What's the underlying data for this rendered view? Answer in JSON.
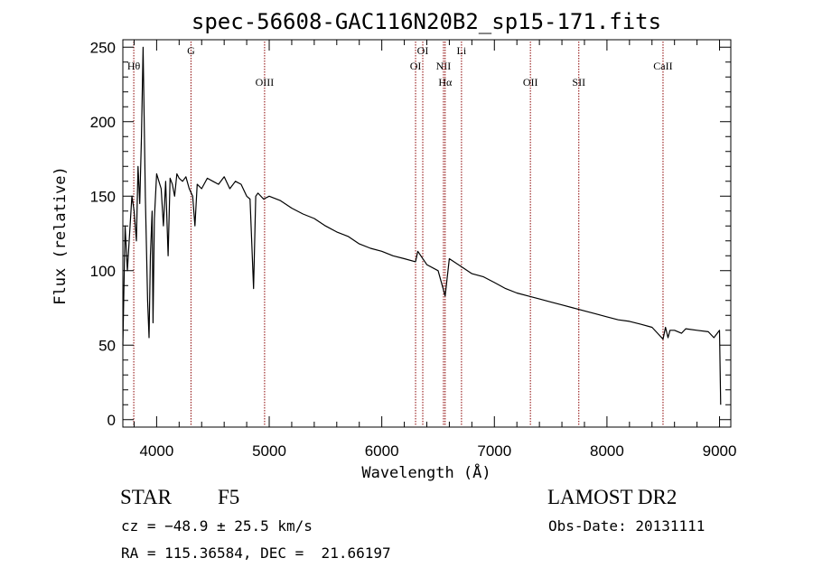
{
  "chart_data": {
    "type": "line",
    "title": "spec-56608-GAC116N20B2_sp15-171.fits",
    "xlabel": "Wavelength (Å)",
    "ylabel": "Flux (relative)",
    "xlim": [
      3700,
      9100
    ],
    "ylim": [
      -5,
      255
    ],
    "x_ticks": [
      "4000",
      "5000",
      "6000",
      "7000",
      "8000",
      "9000"
    ],
    "y_ticks": [
      "0",
      "50",
      "100",
      "150",
      "200",
      "250"
    ],
    "grid": false,
    "line_color": "#000000",
    "marker_color": "#8b0000",
    "series": [
      {
        "x": [
          3700,
          3720,
          3740,
          3760,
          3780,
          3800,
          3820,
          3835,
          3850,
          3865,
          3880,
          3900,
          3920,
          3933,
          3945,
          3960,
          3968,
          3980,
          4000,
          4020,
          4040,
          4060,
          4080,
          4102,
          4120,
          4140,
          4160,
          4180,
          4200,
          4230,
          4260,
          4290,
          4320,
          4340,
          4360,
          4400,
          4450,
          4500,
          4550,
          4600,
          4650,
          4700,
          4750,
          4800,
          4830,
          4861,
          4880,
          4900,
          4950,
          5000,
          5100,
          5200,
          5300,
          5400,
          5500,
          5600,
          5700,
          5800,
          5900,
          6000,
          6100,
          6200,
          6300,
          6320,
          6400,
          6500,
          6563,
          6600,
          6700,
          6800,
          6900,
          7000,
          7100,
          7200,
          7300,
          7400,
          7500,
          7600,
          7700,
          7800,
          7900,
          8000,
          8100,
          8200,
          8300,
          8400,
          8450,
          8498,
          8520,
          8542,
          8560,
          8600,
          8662,
          8700,
          8800,
          8900,
          8950,
          9000,
          9010
        ],
        "y": [
          50,
          130,
          100,
          125,
          150,
          140,
          120,
          170,
          145,
          190,
          250,
          150,
          80,
          55,
          110,
          140,
          65,
          135,
          165,
          160,
          155,
          130,
          160,
          110,
          162,
          158,
          150,
          165,
          162,
          160,
          163,
          155,
          150,
          130,
          158,
          155,
          162,
          160,
          158,
          163,
          155,
          160,
          158,
          150,
          148,
          88,
          150,
          152,
          148,
          150,
          147,
          142,
          138,
          135,
          130,
          126,
          123,
          118,
          115,
          113,
          110,
          108,
          106,
          113,
          104,
          100,
          83,
          108,
          103,
          98,
          96,
          92,
          88,
          85,
          83,
          81,
          79,
          77,
          75,
          73,
          71,
          69,
          67,
          66,
          64,
          62,
          58,
          54,
          62,
          55,
          60,
          60,
          58,
          61,
          60,
          59,
          55,
          60,
          10
        ]
      }
    ],
    "annotations": [
      {
        "label": "Hθ",
        "x": 3797,
        "row": "upper"
      },
      {
        "label": "G",
        "x": 4305,
        "row": "top"
      },
      {
        "label": "OIII",
        "x": 4959,
        "row": "low"
      },
      {
        "label": "OI",
        "x": 6300,
        "row": "upper"
      },
      {
        "label": "OI",
        "x": 6364,
        "row": "top"
      },
      {
        "label": "NII",
        "x": 6548,
        "row": "upper"
      },
      {
        "label": "Hα",
        "x": 6563,
        "row": "low"
      },
      {
        "label": "Li",
        "x": 6708,
        "row": "top"
      },
      {
        "label": "OII",
        "x": 7320,
        "row": "low"
      },
      {
        "label": "SII",
        "x": 7750,
        "row": "low"
      },
      {
        "label": "CaII",
        "x": 8498,
        "row": "upper"
      }
    ]
  },
  "info": {
    "object_class": "STAR",
    "subclass": "F5",
    "survey": "LAMOST DR2",
    "velocity": "cz = −48.9 ± 25.5 km/s",
    "obs_date": "Obs-Date: 20131111",
    "coords": "RA = 115.36584, DEC =  21.66197"
  }
}
